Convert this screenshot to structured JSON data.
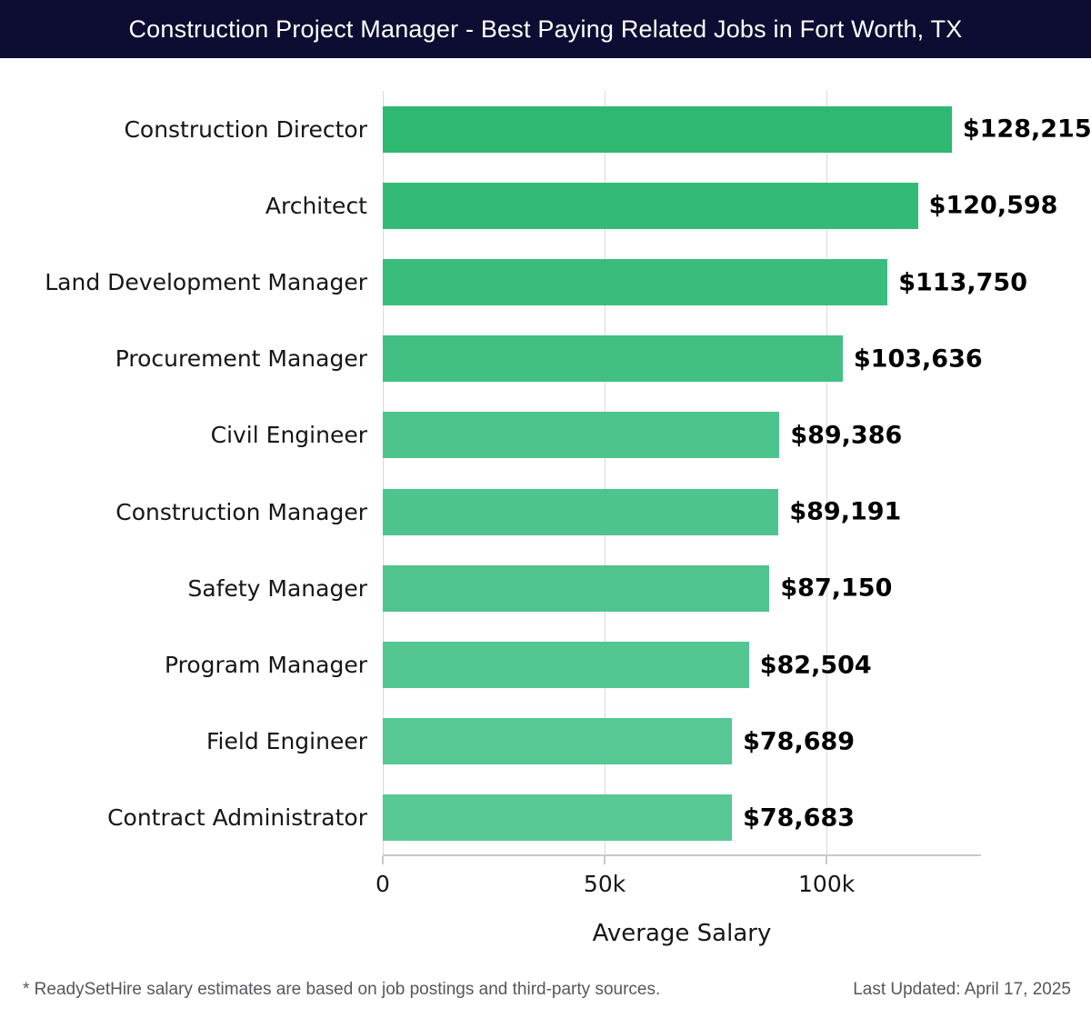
{
  "header": {
    "title": "Construction Project Manager - Best Paying Related Jobs in Fort Worth, TX",
    "bg_color": "#0d0d33",
    "text_color": "#ffffff"
  },
  "chart_data": {
    "type": "bar",
    "orientation": "horizontal",
    "title": "Construction Project Manager - Best Paying Related Jobs in Fort Worth, TX",
    "categories": [
      "Construction Director",
      "Architect",
      "Land Development Manager",
      "Procurement Manager",
      "Civil Engineer",
      "Construction Manager",
      "Safety Manager",
      "Program Manager",
      "Field Engineer",
      "Contract Administrator"
    ],
    "values": [
      128215,
      120598,
      113750,
      103636,
      89386,
      89191,
      87150,
      82504,
      78689,
      78683
    ],
    "value_labels": [
      "$128,215",
      "$120,598",
      "$113,750",
      "$103,636",
      "$89,386",
      "$89,191",
      "$87,150",
      "$82,504",
      "$78,689",
      "$78,683"
    ],
    "bar_colors": [
      "#2eb872",
      "#34ba77",
      "#3abc7c",
      "#42bf83",
      "#4ec48d",
      "#4ec48d",
      "#50c48e",
      "#54c691",
      "#57c794",
      "#57c794"
    ],
    "xlabel": "Average Salary",
    "x_ticks": [
      {
        "value": 0,
        "label": "0"
      },
      {
        "value": 50000,
        "label": "50k"
      },
      {
        "value": 100000,
        "label": "100k"
      }
    ],
    "xlim": [
      0,
      134800
    ],
    "grid": "vertical",
    "gridline_color": "#d9d9d9",
    "axis_color": "#c9c9c9",
    "legend": "none"
  },
  "footer": {
    "disclaimer": "* ReadySetHire salary estimates are based on job postings and third-party sources.",
    "last_updated": "Last Updated: April 17, 2025"
  }
}
